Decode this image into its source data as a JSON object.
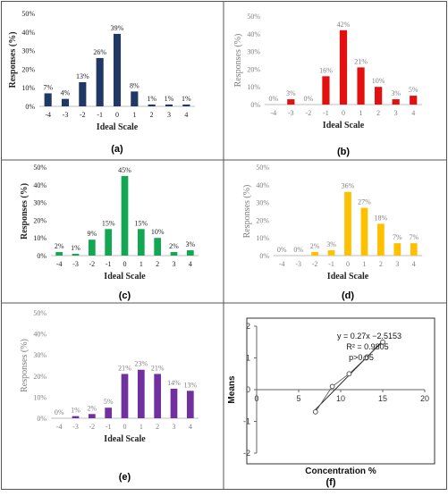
{
  "chart_data": [
    {
      "type": "bar",
      "panel_label": "(a)",
      "categories": [
        "-4",
        "-3",
        "-2",
        "-1",
        "0",
        "1",
        "2",
        "3",
        "4"
      ],
      "values": [
        7,
        4,
        13,
        26,
        39,
        8,
        1,
        1,
        1
      ],
      "data_labels": [
        "7%",
        "4%",
        "13%",
        "26%",
        "39%",
        "8%",
        "1%",
        "1%",
        "1%"
      ],
      "xlabel": "Ideal Scale",
      "ylabel": "Responses (%)",
      "ylim": [
        0,
        50
      ],
      "yticks": [
        "0%",
        "10%",
        "20%",
        "30%",
        "40%",
        "50%"
      ],
      "color": "#1f3864"
    },
    {
      "type": "bar",
      "panel_label": "(b)",
      "categories": [
        "-4",
        "-3",
        "-2",
        "-1",
        "0",
        "1",
        "2",
        "3",
        "4"
      ],
      "values": [
        0,
        3,
        0,
        16,
        42,
        21,
        10,
        3,
        5
      ],
      "data_labels": [
        "0%",
        "3%",
        "0%",
        "16%",
        "42%",
        "21%",
        "10%",
        "3%",
        "5%"
      ],
      "xlabel": "Ideal Scale",
      "ylabel": "Responses (%)",
      "ylim": [
        0,
        50
      ],
      "yticks": [
        "0%",
        "10%",
        "20%",
        "30%",
        "40%",
        "50%"
      ],
      "color": "#e41010"
    },
    {
      "type": "bar",
      "panel_label": "(c)",
      "categories": [
        "-4",
        "-3",
        "-2",
        "-1",
        "0",
        "1",
        "2",
        "3",
        "4"
      ],
      "values": [
        2,
        1,
        9,
        15,
        45,
        15,
        10,
        2,
        3
      ],
      "data_labels": [
        "2%",
        "1%",
        "9%",
        "15%",
        "45%",
        "15%",
        "10%",
        "2%",
        "3%"
      ],
      "xlabel": "Ideal Scale",
      "ylabel": "Responses (%)",
      "ylim": [
        0,
        50
      ],
      "yticks": [
        "0%",
        "10%",
        "20%",
        "30%",
        "40%",
        "50%"
      ],
      "color": "#13a753"
    },
    {
      "type": "bar",
      "panel_label": "(d)",
      "categories": [
        "-4",
        "-3",
        "-2",
        "-1",
        "0",
        "1",
        "2",
        "3",
        "4"
      ],
      "values": [
        0,
        0,
        2,
        3,
        36,
        27,
        18,
        7,
        7
      ],
      "data_labels": [
        "0%",
        "0%",
        "2%",
        "3%",
        "36%",
        "27%",
        "18%",
        "7%",
        "7%"
      ],
      "xlabel": "Ideal Scale",
      "ylabel": "Responses (%)",
      "ylim": [
        0,
        50
      ],
      "yticks": [
        "0%",
        "10%",
        "20%",
        "30%",
        "40%",
        "50%"
      ],
      "color": "#ffc000"
    },
    {
      "type": "bar",
      "panel_label": "(e)",
      "categories": [
        "-4",
        "-3",
        "-2",
        "-1",
        "0",
        "1",
        "2",
        "3",
        "4"
      ],
      "values": [
        0,
        1,
        2,
        5,
        21,
        23,
        21,
        14,
        13
      ],
      "data_labels": [
        "0%",
        "1%",
        "2%",
        "5%",
        "21%",
        "23%",
        "21%",
        "14%",
        "13%"
      ],
      "xlabel": "Ideal Scale",
      "ylabel": "Responses (%)",
      "ylim": [
        0,
        50
      ],
      "yticks": [
        "0%",
        "10%",
        "20%",
        "30%",
        "40%",
        "50%"
      ],
      "color": "#7030a0"
    },
    {
      "type": "scatter",
      "panel_label": "(f)",
      "x": [
        7,
        9,
        11,
        13,
        15
      ],
      "y": [
        -0.7,
        0.1,
        0.5,
        1.0,
        1.5
      ],
      "trendline": {
        "slope": 0.27,
        "intercept": -2.5153
      },
      "annotations": [
        "y = 0.27x −2.5153",
        "R² = 0.9805",
        "p>0.05"
      ],
      "xlabel": "Concentration %",
      "ylabel": "Means",
      "xlim": [
        0,
        20
      ],
      "ylim": [
        -2,
        2
      ],
      "xticks": [
        "0",
        "5",
        "10",
        "15",
        "20"
      ],
      "yticks": [
        "-2",
        "-1",
        "0",
        "1",
        "2"
      ],
      "color": "#000000"
    }
  ]
}
